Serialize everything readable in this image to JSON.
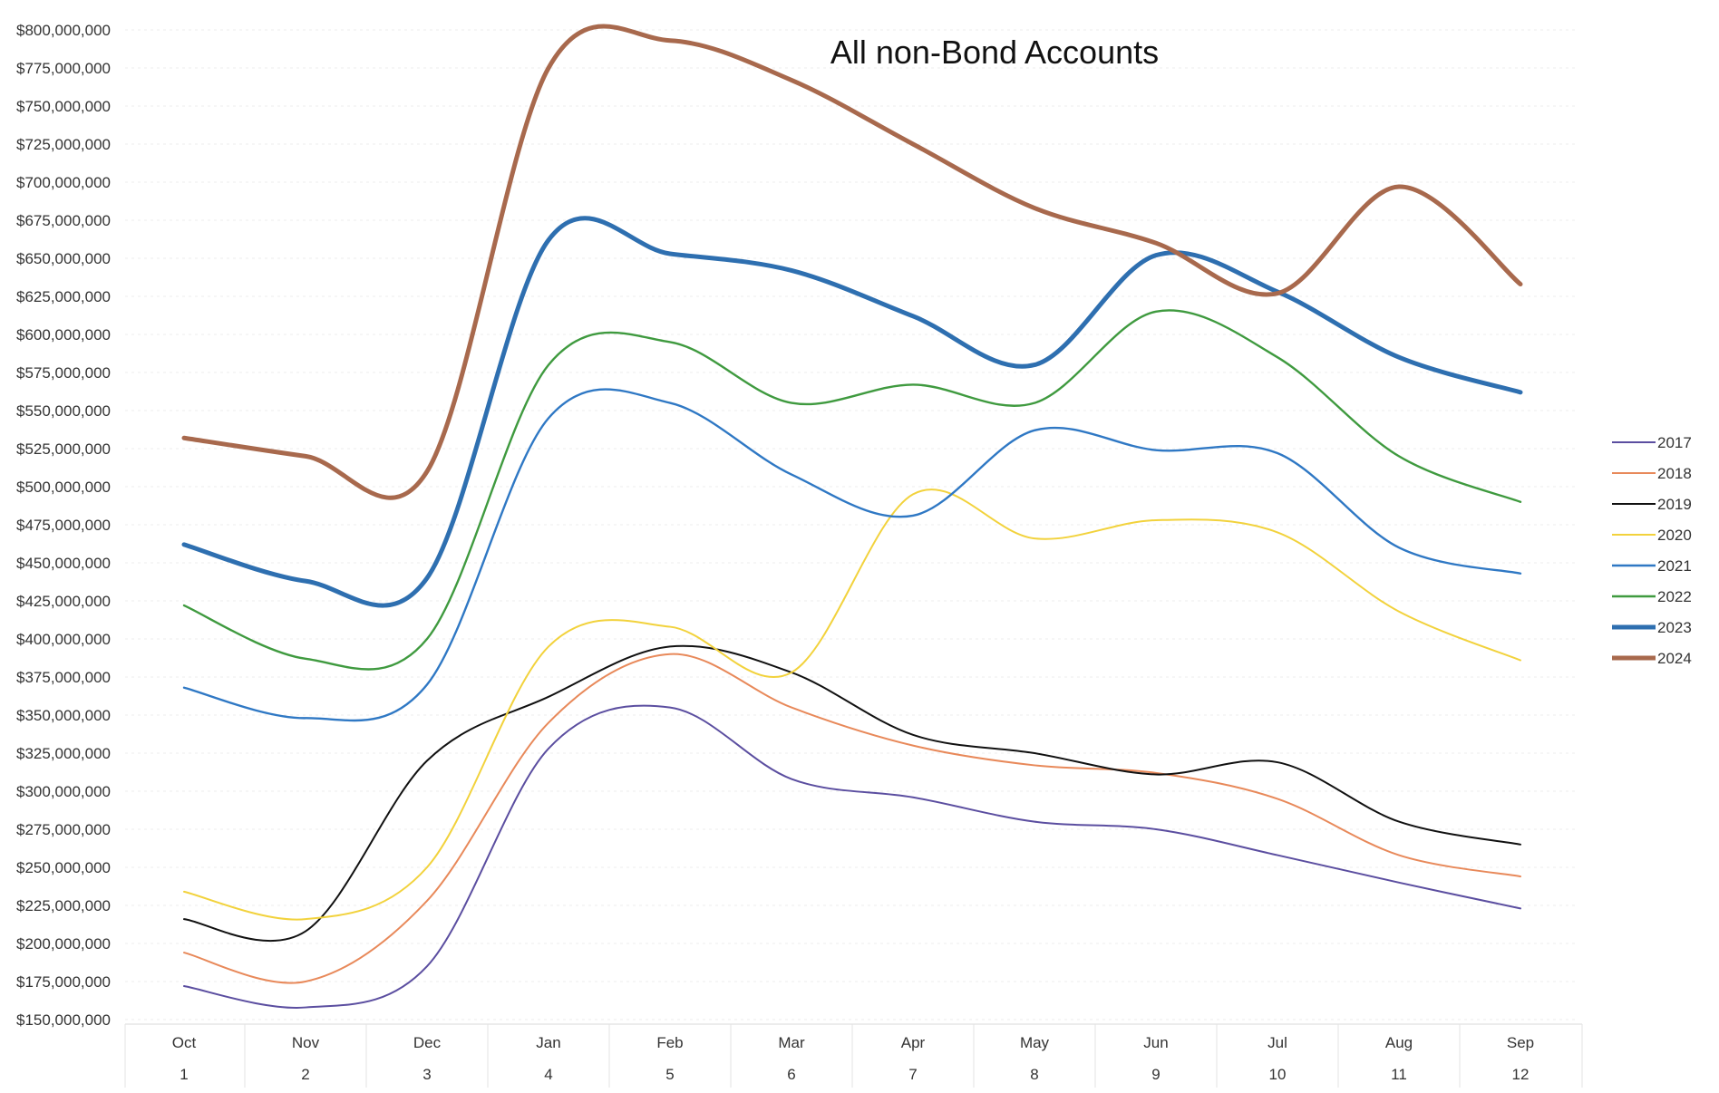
{
  "chart_data": {
    "type": "line",
    "title": "All non-Bond Accounts",
    "xlabel": "",
    "ylabel": "",
    "ylim": [
      150000000,
      800000000
    ],
    "y_tick_step": 25000000,
    "y_ticks": [
      "$150,000,000",
      "$175,000,000",
      "$200,000,000",
      "$225,000,000",
      "$250,000,000",
      "$275,000,000",
      "$300,000,000",
      "$325,000,000",
      "$350,000,000",
      "$375,000,000",
      "$400,000,000",
      "$425,000,000",
      "$450,000,000",
      "$475,000,000",
      "$500,000,000",
      "$525,000,000",
      "$550,000,000",
      "$575,000,000",
      "$600,000,000",
      "$625,000,000",
      "$650,000,000",
      "$675,000,000",
      "$700,000,000",
      "$725,000,000",
      "$750,000,000",
      "$775,000,000",
      "$800,000,000"
    ],
    "categories": [
      "Oct",
      "Nov",
      "Dec",
      "Jan",
      "Feb",
      "Mar",
      "Apr",
      "May",
      "Jun",
      "Jul",
      "Aug",
      "Sep"
    ],
    "categories_row2": [
      "1",
      "2",
      "3",
      "4",
      "5",
      "6",
      "7",
      "8",
      "9",
      "10",
      "11",
      "12"
    ],
    "legend_position": "right",
    "series": [
      {
        "name": "2017",
        "color": "#5b4ea0",
        "width": 2,
        "values": [
          172000000,
          158000000,
          185000000,
          328000000,
          355000000,
          308000000,
          296000000,
          280000000,
          275000000,
          258000000,
          240000000,
          223000000
        ]
      },
      {
        "name": "2018",
        "color": "#e8895a",
        "width": 2,
        "values": [
          194000000,
          175000000,
          228000000,
          345000000,
          390000000,
          355000000,
          330000000,
          317000000,
          312000000,
          295000000,
          258000000,
          244000000
        ]
      },
      {
        "name": "2019",
        "color": "#111111",
        "width": 2,
        "values": [
          216000000,
          208000000,
          320000000,
          362000000,
          395000000,
          378000000,
          337000000,
          325000000,
          311000000,
          319000000,
          280000000,
          265000000
        ]
      },
      {
        "name": "2020",
        "color": "#f2d23c",
        "width": 2,
        "values": [
          234000000,
          216000000,
          250000000,
          395000000,
          408000000,
          378000000,
          495000000,
          466000000,
          478000000,
          470000000,
          418000000,
          386000000
        ]
      },
      {
        "name": "2021",
        "color": "#2f78c4",
        "width": 2.4,
        "values": [
          368000000,
          348000000,
          370000000,
          545000000,
          555000000,
          508000000,
          481000000,
          537000000,
          524000000,
          522000000,
          460000000,
          443000000
        ]
      },
      {
        "name": "2022",
        "color": "#3f9a3f",
        "width": 2.4,
        "values": [
          422000000,
          387000000,
          400000000,
          580000000,
          595000000,
          555000000,
          567000000,
          555000000,
          615000000,
          585000000,
          520000000,
          490000000
        ]
      },
      {
        "name": "2023",
        "color": "#2e6fb0",
        "width": 5,
        "values": [
          462000000,
          438000000,
          440000000,
          662000000,
          653000000,
          642000000,
          612000000,
          580000000,
          652000000,
          628000000,
          585000000,
          562000000
        ]
      },
      {
        "name": "2024",
        "color": "#a8694d",
        "width": 5,
        "values": [
          532000000,
          520000000,
          510000000,
          775000000,
          793000000,
          767000000,
          725000000,
          683000000,
          660000000,
          627000000,
          697000000,
          633000000
        ]
      }
    ]
  }
}
